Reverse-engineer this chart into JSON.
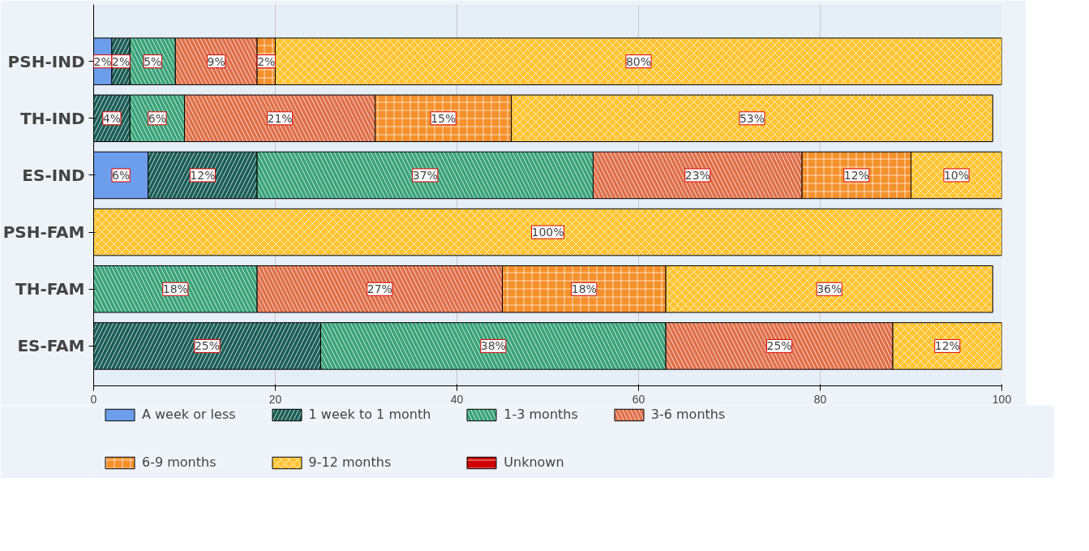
{
  "chart_data": {
    "type": "bar",
    "orientation": "horizontal",
    "stacked": true,
    "categories": [
      "PSH-IND",
      "TH-IND",
      "ES-IND",
      "PSH-FAM",
      "TH-FAM",
      "ES-FAM"
    ],
    "series": [
      {
        "name": "A week or less",
        "color": "#6d9eeb",
        "values": [
          2,
          null,
          6,
          null,
          null,
          null
        ],
        "value_labels": [
          "2%",
          null,
          "6%",
          null,
          null,
          null
        ]
      },
      {
        "name": "1 week to 1 month",
        "color": "#1b5e57",
        "values": [
          2,
          4,
          12,
          null,
          null,
          25
        ],
        "value_labels": [
          "2%",
          "4%",
          "12%",
          null,
          null,
          "25%"
        ]
      },
      {
        "name": "1-3 months",
        "color": "#3aa37a",
        "values": [
          5,
          6,
          37,
          null,
          18,
          38
        ],
        "value_labels": [
          "5%",
          "6%",
          "37%",
          null,
          "18%",
          "38%"
        ]
      },
      {
        "name": "3-6 months",
        "color": "#e0704a",
        "values": [
          9,
          21,
          23,
          null,
          27,
          25
        ],
        "value_labels": [
          "9%",
          "21%",
          "23%",
          null,
          "27%",
          "25%"
        ]
      },
      {
        "name": "6-9 months",
        "color": "#f5902a",
        "values": [
          2,
          15,
          12,
          null,
          18,
          null
        ],
        "value_labels": [
          "2%",
          "15%",
          "12%",
          null,
          "18%",
          null
        ]
      },
      {
        "name": "9-12 months",
        "color": "#ffc433",
        "values": [
          80,
          53,
          10,
          100,
          36,
          12
        ],
        "value_labels": [
          "80%",
          "53%",
          "10%",
          "100%",
          "36%",
          "12%"
        ]
      },
      {
        "name": "Unknown",
        "color": "#cc0000",
        "values": [
          null,
          null,
          null,
          null,
          null,
          null
        ],
        "value_labels": [
          null,
          null,
          null,
          null,
          null,
          null
        ]
      }
    ],
    "xlim": [
      0,
      100
    ],
    "xticks": [
      0,
      20,
      40,
      60,
      80,
      100
    ],
    "grid": "x",
    "legend": "bottom"
  }
}
